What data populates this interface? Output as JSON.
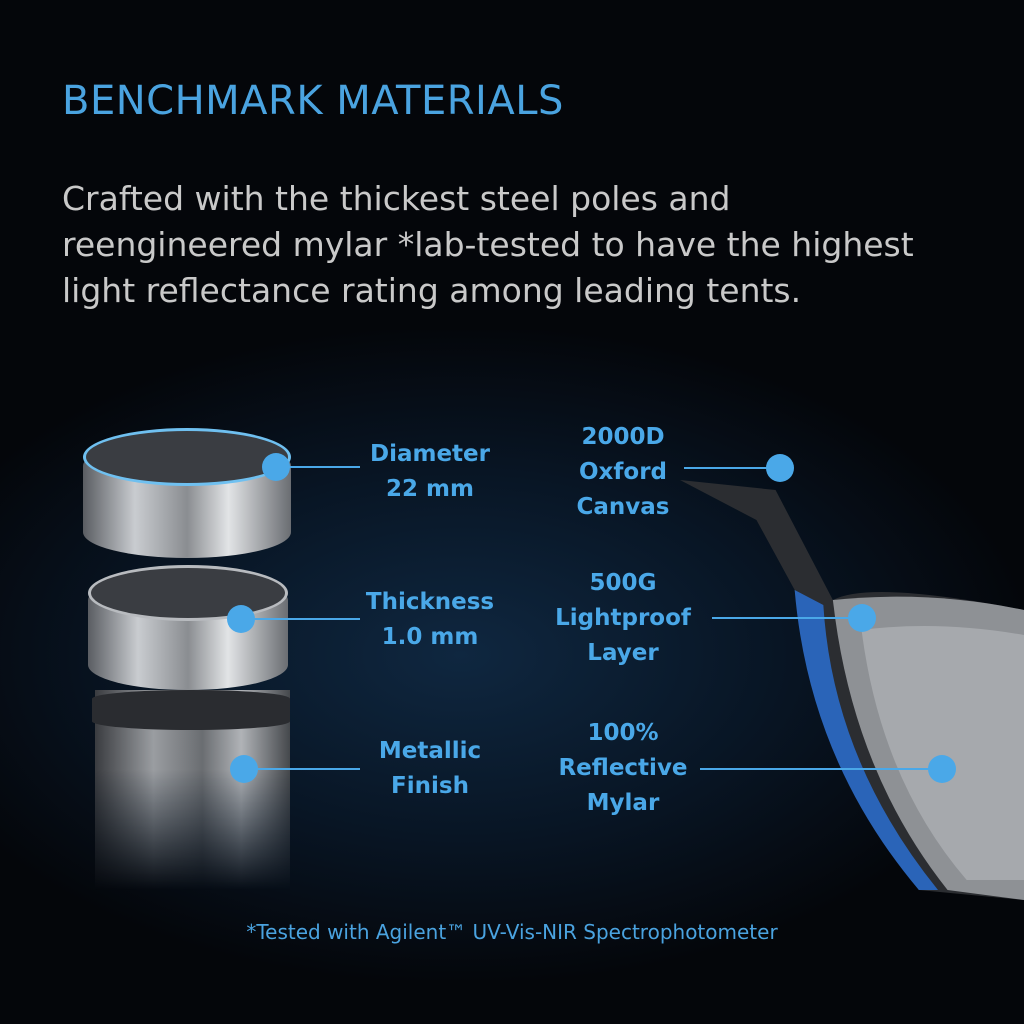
{
  "title": "BENCHMARK MATERIALS",
  "body_lines": [
    "Crafted with the thickest steel poles and",
    "reengineered mylar *lab-tested to have the highest",
    "light reflectance rating among leading tents."
  ],
  "pole_features": [
    {
      "line1": "Diameter",
      "line2": "22 mm"
    },
    {
      "line1": "Thickness",
      "line2": "1.0 mm"
    },
    {
      "line1": "Metallic",
      "line2": "Finish"
    }
  ],
  "fabric_layers": [
    {
      "line1": "2000D",
      "line2": "Oxford",
      "line3": "Canvas"
    },
    {
      "line1": "500G",
      "line2": "Lightproof",
      "line3": "Layer"
    },
    {
      "line1": "100%",
      "line2": "Reflective",
      "line3": "Mylar"
    }
  ],
  "footer": "*Tested with Agilent™ UV-Vis-NIR Spectrophotometer",
  "colors": {
    "accent": "#4aa8e8",
    "background": "#04060a",
    "body_text": "#c9c9c9"
  }
}
